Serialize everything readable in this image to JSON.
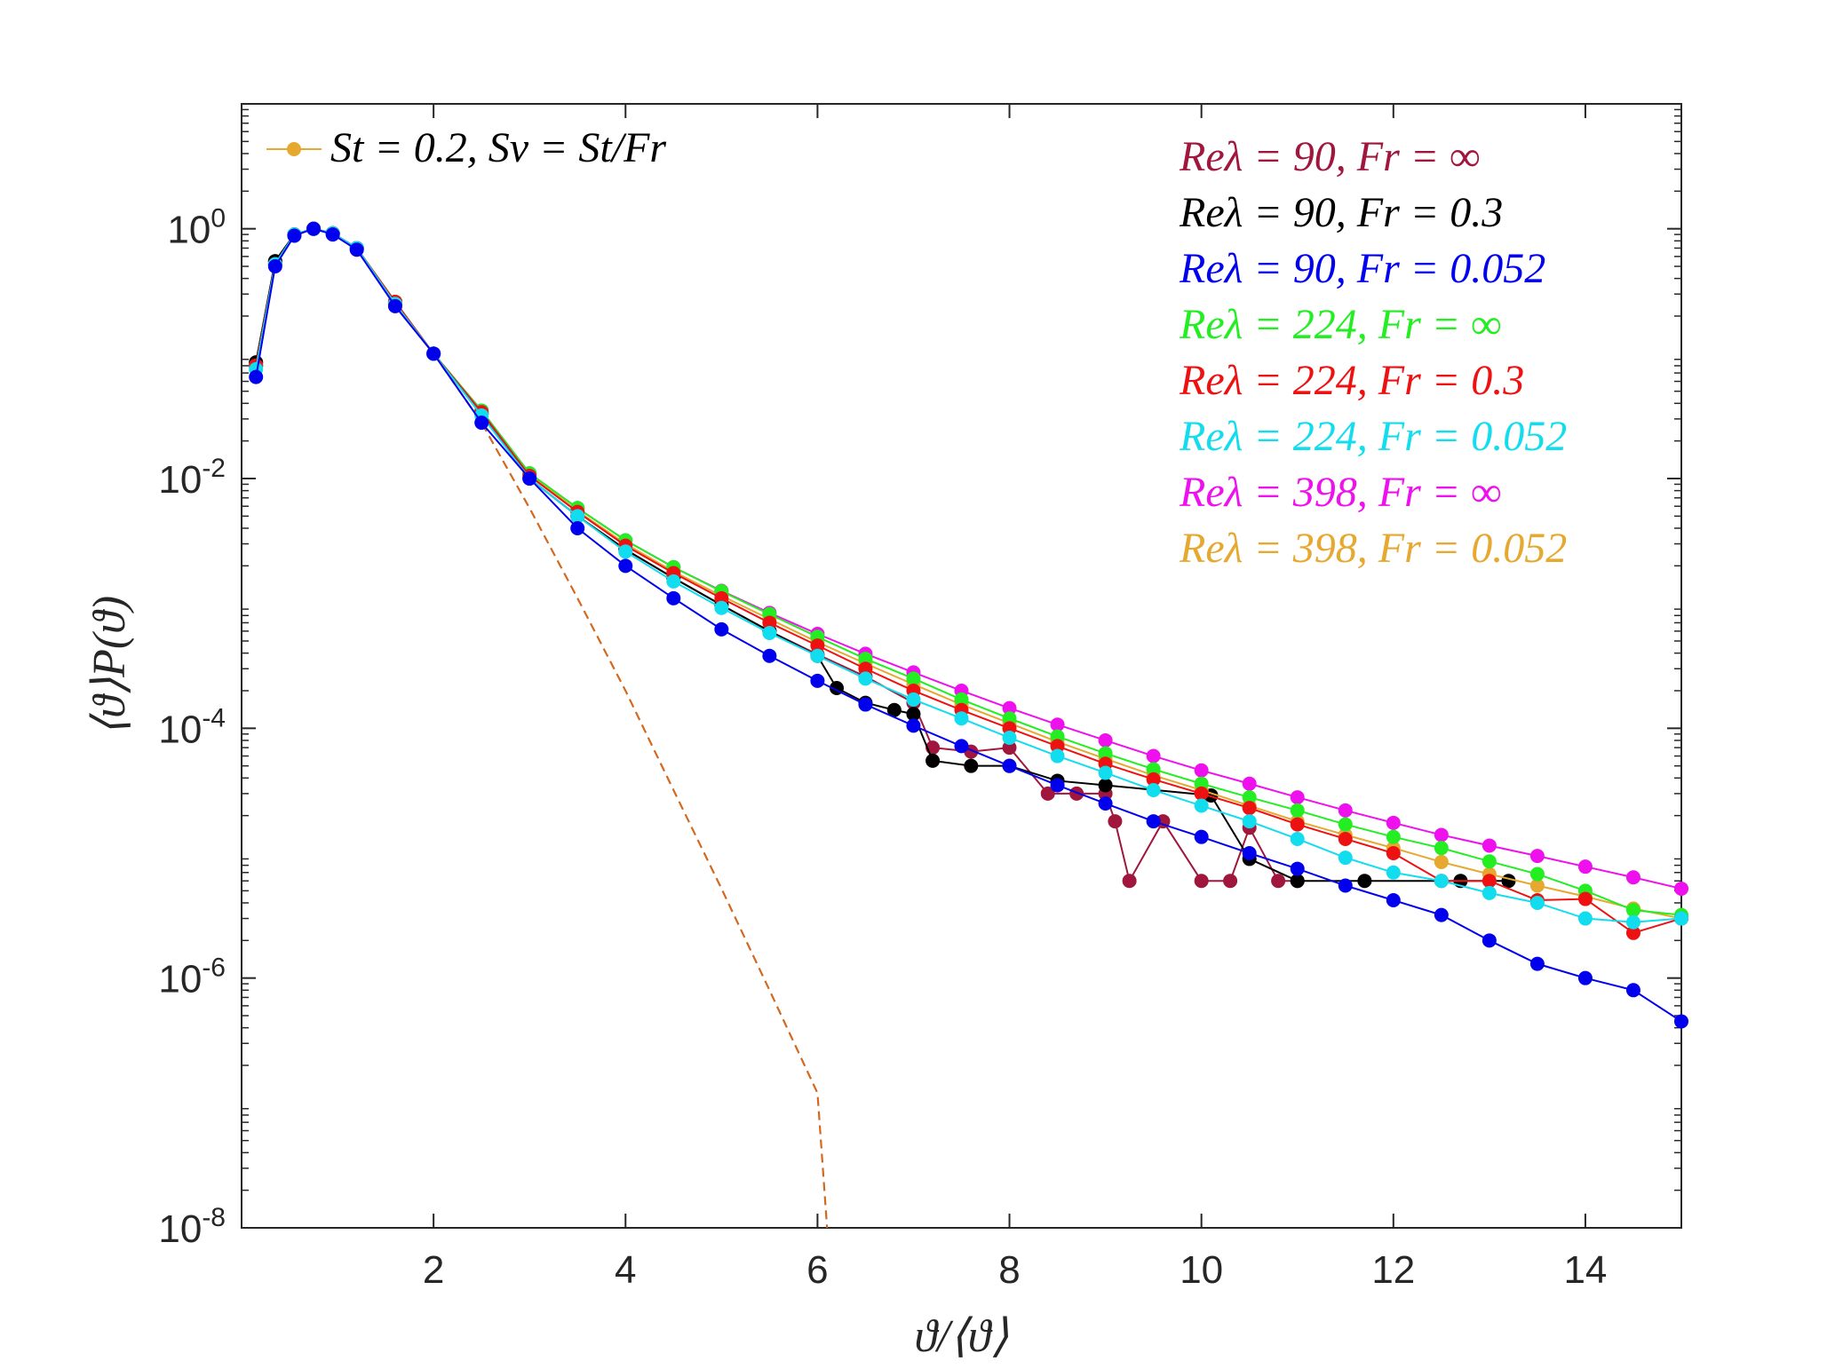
{
  "chart_data": {
    "type": "scatter",
    "title": "",
    "xlabel": "ϑ/⟨ϑ⟩",
    "ylabel": "⟨ϑ⟩P(ϑ)",
    "xlim": [
      0,
      15
    ],
    "ylim": [
      1e-08,
      10
    ],
    "yscale": "log",
    "grid": false,
    "x_ticks": [
      {
        "value": 2,
        "label": "2"
      },
      {
        "value": 4,
        "label": "4"
      },
      {
        "value": 6,
        "label": "6"
      },
      {
        "value": 8,
        "label": "8"
      },
      {
        "value": 10,
        "label": "10"
      },
      {
        "value": 12,
        "label": "12"
      },
      {
        "value": 14,
        "label": "14"
      }
    ],
    "y_ticks": [
      {
        "value": 1,
        "base": "10",
        "exp": "0"
      },
      {
        "value": 0.01,
        "base": "10",
        "exp": "-2"
      },
      {
        "value": 0.0001,
        "base": "10",
        "exp": "-4"
      },
      {
        "value": 1e-06,
        "base": "10",
        "exp": "-6"
      },
      {
        "value": 1e-08,
        "base": "10",
        "exp": "-8"
      }
    ],
    "annotation": "St = 0.2, Sv = St/Fr",
    "legend_position": "top-right",
    "series": [
      {
        "name": "Reλ = 90, Fr = ∞",
        "color": "#a0163c",
        "order": 1,
        "points": [
          [
            0.15,
            0.085
          ],
          [
            0.35,
            0.55
          ],
          [
            0.55,
            0.9
          ],
          [
            0.75,
            1.0
          ],
          [
            0.95,
            0.92
          ],
          [
            1.2,
            0.7
          ],
          [
            1.6,
            0.25
          ],
          [
            2.0,
            0.1
          ],
          [
            2.5,
            0.033
          ],
          [
            3.0,
            0.01
          ],
          [
            3.5,
            0.005
          ],
          [
            4.0,
            0.0027
          ],
          [
            4.5,
            0.0016
          ],
          [
            5.0,
            0.00097
          ],
          [
            5.5,
            0.0006
          ],
          [
            6.0,
            0.00039
          ],
          [
            6.5,
            0.00026
          ],
          [
            7.0,
            0.00016
          ],
          [
            7.2,
            7e-05
          ],
          [
            7.6,
            6.5e-05
          ],
          [
            8.0,
            7e-05
          ],
          [
            8.4,
            3e-05
          ],
          [
            8.7,
            3e-05
          ],
          [
            9.0,
            3e-05
          ],
          [
            9.1,
            1.8e-05
          ],
          [
            9.25,
            6e-06
          ],
          [
            9.6,
            1.8e-05
          ],
          [
            10.0,
            6e-06
          ],
          [
            10.3,
            6e-06
          ],
          [
            10.5,
            1.6e-05
          ],
          [
            10.8,
            6e-06
          ],
          [
            11.0,
            6e-06
          ]
        ]
      },
      {
        "name": "Reλ = 90, Fr = 0.3",
        "color": "#000000",
        "order": 2,
        "points": [
          [
            0.15,
            0.085
          ],
          [
            0.35,
            0.55
          ],
          [
            0.55,
            0.9
          ],
          [
            0.75,
            1.0
          ],
          [
            0.95,
            0.92
          ],
          [
            1.2,
            0.7
          ],
          [
            1.6,
            0.25
          ],
          [
            2.0,
            0.1
          ],
          [
            2.5,
            0.033
          ],
          [
            3.0,
            0.01
          ],
          [
            3.5,
            0.005
          ],
          [
            4.0,
            0.0027
          ],
          [
            4.5,
            0.0016
          ],
          [
            5.0,
            0.00097
          ],
          [
            5.5,
            0.0006
          ],
          [
            6.0,
            0.00038
          ],
          [
            6.2,
            0.00021
          ],
          [
            6.5,
            0.00016
          ],
          [
            6.8,
            0.00014
          ],
          [
            7.0,
            0.00013
          ],
          [
            7.2,
            5.5e-05
          ],
          [
            7.6,
            5e-05
          ],
          [
            8.0,
            5e-05
          ],
          [
            8.5,
            3.8e-05
          ],
          [
            9.0,
            3.5e-05
          ],
          [
            10.1,
            2.9e-05
          ],
          [
            10.5,
            9e-06
          ],
          [
            11.0,
            6e-06
          ],
          [
            11.7,
            6e-06
          ],
          [
            12.7,
            6e-06
          ],
          [
            13.2,
            6e-06
          ]
        ]
      },
      {
        "name": "Reλ = 90, Fr = 0.052",
        "color": "#0000ee",
        "order": 8,
        "points": [
          [
            0.15,
            0.065
          ],
          [
            0.35,
            0.5
          ],
          [
            0.55,
            0.88
          ],
          [
            0.75,
            1.0
          ],
          [
            0.95,
            0.9
          ],
          [
            1.2,
            0.68
          ],
          [
            1.6,
            0.24
          ],
          [
            2.0,
            0.1
          ],
          [
            2.5,
            0.028
          ],
          [
            3.0,
            0.01
          ],
          [
            3.5,
            0.004
          ],
          [
            4.0,
            0.002
          ],
          [
            4.5,
            0.0011
          ],
          [
            5.0,
            0.00062
          ],
          [
            5.5,
            0.00038
          ],
          [
            6.0,
            0.00024
          ],
          [
            6.5,
            0.000155
          ],
          [
            7.0,
            0.000105
          ],
          [
            7.5,
            7.2e-05
          ],
          [
            8.0,
            5e-05
          ],
          [
            8.5,
            3.5e-05
          ],
          [
            9.0,
            2.5e-05
          ],
          [
            9.5,
            1.8e-05
          ],
          [
            10.0,
            1.35e-05
          ],
          [
            10.5,
            1e-05
          ],
          [
            11.0,
            7.5e-06
          ],
          [
            11.5,
            5.5e-06
          ],
          [
            12.0,
            4.2e-06
          ],
          [
            12.5,
            3.2e-06
          ],
          [
            13.0,
            2e-06
          ],
          [
            13.5,
            1.3e-06
          ],
          [
            14.0,
            1e-06
          ],
          [
            14.5,
            8e-07
          ],
          [
            15.0,
            4.5e-07
          ]
        ]
      },
      {
        "name": "Reλ = 224, Fr = ∞",
        "color": "#22ee22",
        "order": 5,
        "points": [
          [
            0.15,
            0.08
          ],
          [
            0.35,
            0.52
          ],
          [
            0.55,
            0.9
          ],
          [
            0.75,
            1.0
          ],
          [
            0.95,
            0.92
          ],
          [
            1.2,
            0.7
          ],
          [
            1.6,
            0.26
          ],
          [
            2.0,
            0.1
          ],
          [
            2.5,
            0.035
          ],
          [
            3.0,
            0.011
          ],
          [
            3.5,
            0.0058
          ],
          [
            4.0,
            0.0032
          ],
          [
            4.5,
            0.00195
          ],
          [
            5.0,
            0.00125
          ],
          [
            5.5,
            0.00082
          ],
          [
            6.0,
            0.00054
          ],
          [
            6.5,
            0.00036
          ],
          [
            7.0,
            0.00025
          ],
          [
            7.5,
            0.00017
          ],
          [
            8.0,
            0.00012
          ],
          [
            8.5,
            8.6e-05
          ],
          [
            9.0,
            6.3e-05
          ],
          [
            9.5,
            4.7e-05
          ],
          [
            10.0,
            3.6e-05
          ],
          [
            10.5,
            2.8e-05
          ],
          [
            11.0,
            2.2e-05
          ],
          [
            11.5,
            1.7e-05
          ],
          [
            12.0,
            1.35e-05
          ],
          [
            12.5,
            1.1e-05
          ],
          [
            13.0,
            8.6e-06
          ],
          [
            13.5,
            6.8e-06
          ],
          [
            14.0,
            5e-06
          ],
          [
            14.5,
            3.5e-06
          ],
          [
            15.0,
            3.2e-06
          ]
        ]
      },
      {
        "name": "Reλ = 224, Fr = 0.3",
        "color": "#ee1111",
        "order": 6,
        "points": [
          [
            0.15,
            0.08
          ],
          [
            0.35,
            0.52
          ],
          [
            0.55,
            0.9
          ],
          [
            0.75,
            1.0
          ],
          [
            0.95,
            0.92
          ],
          [
            1.2,
            0.7
          ],
          [
            1.6,
            0.26
          ],
          [
            2.0,
            0.1
          ],
          [
            2.5,
            0.034
          ],
          [
            3.0,
            0.0105
          ],
          [
            3.5,
            0.0054
          ],
          [
            4.0,
            0.0029
          ],
          [
            4.5,
            0.00175
          ],
          [
            5.0,
            0.0011
          ],
          [
            5.5,
            0.0007
          ],
          [
            6.0,
            0.00046
          ],
          [
            6.5,
            0.0003
          ],
          [
            7.0,
            0.0002
          ],
          [
            7.5,
            0.00014
          ],
          [
            8.0,
            0.0001
          ],
          [
            8.5,
            7.2e-05
          ],
          [
            9.0,
            5.2e-05
          ],
          [
            9.5,
            3.9e-05
          ],
          [
            10.0,
            3e-05
          ],
          [
            10.5,
            2.3e-05
          ],
          [
            11.0,
            1.7e-05
          ],
          [
            11.5,
            1.3e-05
          ],
          [
            12.0,
            1e-05
          ],
          [
            12.5,
            6e-06
          ],
          [
            13.0,
            6e-06
          ],
          [
            13.5,
            4.2e-06
          ],
          [
            14.0,
            4.3e-06
          ],
          [
            14.5,
            2.3e-06
          ],
          [
            15.0,
            3e-06
          ]
        ]
      },
      {
        "name": "Reλ = 224, Fr = 0.052",
        "color": "#11ddee",
        "order": 7,
        "points": [
          [
            0.15,
            0.075
          ],
          [
            0.35,
            0.52
          ],
          [
            0.55,
            0.9
          ],
          [
            0.75,
            1.0
          ],
          [
            0.95,
            0.92
          ],
          [
            1.2,
            0.7
          ],
          [
            1.6,
            0.25
          ],
          [
            2.0,
            0.1
          ],
          [
            2.5,
            0.032
          ],
          [
            3.0,
            0.01
          ],
          [
            3.5,
            0.005
          ],
          [
            4.0,
            0.0026
          ],
          [
            4.5,
            0.0015
          ],
          [
            5.0,
            0.00092
          ],
          [
            5.5,
            0.00058
          ],
          [
            6.0,
            0.00038
          ],
          [
            6.5,
            0.00025
          ],
          [
            7.0,
            0.00017
          ],
          [
            7.5,
            0.00012
          ],
          [
            8.0,
            8.4e-05
          ],
          [
            8.5,
            6e-05
          ],
          [
            9.0,
            4.4e-05
          ],
          [
            9.5,
            3.2e-05
          ],
          [
            10.0,
            2.4e-05
          ],
          [
            10.5,
            1.8e-05
          ],
          [
            11.0,
            1.3e-05
          ],
          [
            11.5,
            9.2e-06
          ],
          [
            12.0,
            7e-06
          ],
          [
            12.5,
            6e-06
          ],
          [
            13.0,
            4.8e-06
          ],
          [
            13.5,
            4e-06
          ],
          [
            14.0,
            3e-06
          ],
          [
            14.5,
            2.8e-06
          ],
          [
            15.0,
            3e-06
          ]
        ]
      },
      {
        "name": "Reλ = 398, Fr = ∞",
        "color": "#ee11ee",
        "order": 3,
        "points": [
          [
            0.15,
            0.08
          ],
          [
            0.35,
            0.52
          ],
          [
            0.55,
            0.9
          ],
          [
            0.75,
            1.0
          ],
          [
            0.95,
            0.92
          ],
          [
            1.2,
            0.7
          ],
          [
            1.6,
            0.26
          ],
          [
            2.0,
            0.1
          ],
          [
            2.5,
            0.035
          ],
          [
            3.0,
            0.011
          ],
          [
            3.5,
            0.0058
          ],
          [
            4.0,
            0.0032
          ],
          [
            4.5,
            0.00195
          ],
          [
            5.0,
            0.00126
          ],
          [
            5.5,
            0.00084
          ],
          [
            6.0,
            0.00057
          ],
          [
            6.5,
            0.000395
          ],
          [
            7.0,
            0.00028
          ],
          [
            7.5,
            0.0002
          ],
          [
            8.0,
            0.000145
          ],
          [
            8.5,
            0.000107
          ],
          [
            9.0,
            8e-05
          ],
          [
            9.5,
            6e-05
          ],
          [
            10.0,
            4.6e-05
          ],
          [
            10.5,
            3.6e-05
          ],
          [
            11.0,
            2.8e-05
          ],
          [
            11.5,
            2.2e-05
          ],
          [
            12.0,
            1.75e-05
          ],
          [
            12.5,
            1.4e-05
          ],
          [
            13.0,
            1.15e-05
          ],
          [
            13.5,
            9.5e-06
          ],
          [
            14.0,
            7.8e-06
          ],
          [
            14.5,
            6.4e-06
          ],
          [
            15.0,
            5.2e-06
          ]
        ]
      },
      {
        "name": "Reλ = 398, Fr = 0.052",
        "color": "#e6a82e",
        "order": 4,
        "points": [
          [
            0.15,
            0.08
          ],
          [
            0.35,
            0.52
          ],
          [
            0.55,
            0.9
          ],
          [
            0.75,
            1.0
          ],
          [
            0.95,
            0.92
          ],
          [
            1.2,
            0.7
          ],
          [
            1.6,
            0.26
          ],
          [
            2.0,
            0.1
          ],
          [
            2.5,
            0.034
          ],
          [
            3.0,
            0.0107
          ],
          [
            3.5,
            0.0055
          ],
          [
            4.0,
            0.003
          ],
          [
            4.5,
            0.0018
          ],
          [
            5.0,
            0.00115
          ],
          [
            5.5,
            0.00075
          ],
          [
            6.0,
            0.00049
          ],
          [
            6.5,
            0.00033
          ],
          [
            7.0,
            0.000225
          ],
          [
            7.5,
            0.000155
          ],
          [
            8.0,
            0.00011
          ],
          [
            8.5,
            7.8e-05
          ],
          [
            9.0,
            5.7e-05
          ],
          [
            9.5,
            4.2e-05
          ],
          [
            10.0,
            3.2e-05
          ],
          [
            10.5,
            2.4e-05
          ],
          [
            11.0,
            1.8e-05
          ],
          [
            11.5,
            1.4e-05
          ],
          [
            12.0,
            1.1e-05
          ],
          [
            12.5,
            8.5e-06
          ],
          [
            13.0,
            6.8e-06
          ],
          [
            13.5,
            5.5e-06
          ],
          [
            14.0,
            4.5e-06
          ],
          [
            14.5,
            3.6e-06
          ],
          [
            15.0,
            3e-06
          ]
        ]
      }
    ],
    "reference_curve": {
      "color": "#d2691e",
      "style": "dashed",
      "points": [
        [
          2.0,
          0.1
        ],
        [
          2.5,
          0.028
        ],
        [
          3.0,
          0.0058
        ],
        [
          3.5,
          0.0011
        ],
        [
          4.0,
          0.0002
        ],
        [
          4.5,
          3.2e-05
        ],
        [
          5.0,
          5.2e-06
        ],
        [
          5.5,
          8e-07
        ],
        [
          6.0,
          1.2e-07
        ],
        [
          6.1,
          1e-08
        ]
      ]
    }
  }
}
